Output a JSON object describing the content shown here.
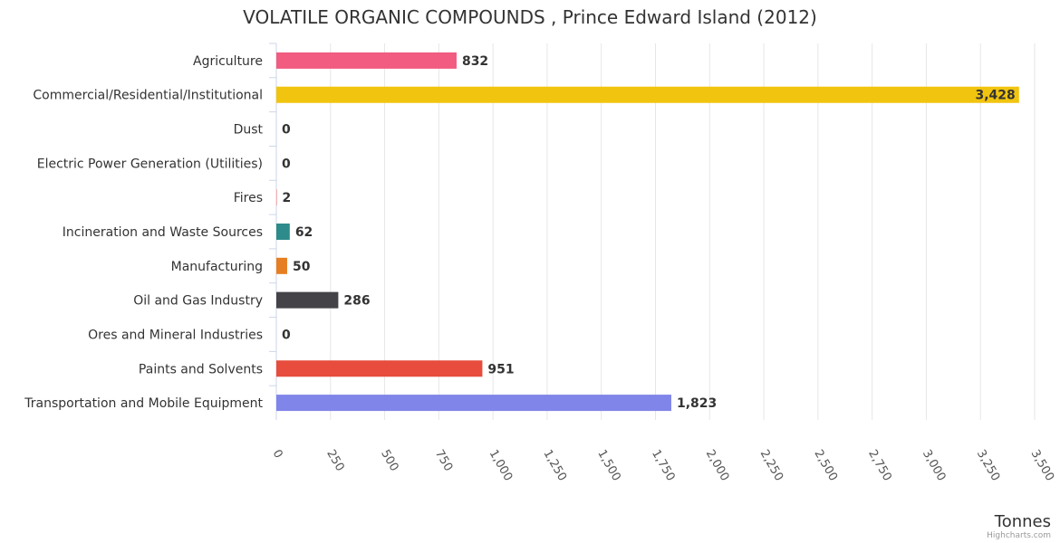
{
  "chart_data": {
    "type": "bar",
    "orientation": "horizontal",
    "title": "VOLATILE ORGANIC COMPOUNDS , Prince Edward Island (2012)",
    "categories": [
      "Agriculture",
      "Commercial/Residential/Institutional",
      "Dust",
      "Electric Power Generation (Utilities)",
      "Fires",
      "Incineration and Waste Sources",
      "Manufacturing",
      "Oil and Gas Industry",
      "Ores and Mineral Industries",
      "Paints and Solvents",
      "Transportation and Mobile Equipment"
    ],
    "values": [
      832,
      3428,
      0,
      0,
      2,
      62,
      50,
      286,
      0,
      951,
      1823
    ],
    "value_labels": [
      "832",
      "3,428",
      "0",
      "0",
      "2",
      "62",
      "50",
      "286",
      "0",
      "951",
      "1,823"
    ],
    "colors": [
      "#f15c80",
      "#f1c40f",
      "#e4d354",
      "#2b908f",
      "#f45b5b",
      "#2e8b8b",
      "#e67e22",
      "#434348",
      "#90ed7d",
      "#e74c3c",
      "#8085e9"
    ],
    "xlabel": "Tonnes",
    "ylabel": "",
    "xlim": [
      0,
      3500
    ],
    "ticks": [
      0,
      250,
      500,
      750,
      1000,
      1250,
      1500,
      1750,
      2000,
      2250,
      2500,
      2750,
      3000,
      3250,
      3500
    ],
    "tick_labels": [
      "0",
      "250",
      "500",
      "750",
      "1,000",
      "1,250",
      "1,500",
      "1,750",
      "2,000",
      "2,250",
      "2,500",
      "2,750",
      "3,000",
      "3,250",
      "3,500"
    ],
    "grid": true,
    "legend": "none"
  },
  "credits": "Highcharts.com"
}
